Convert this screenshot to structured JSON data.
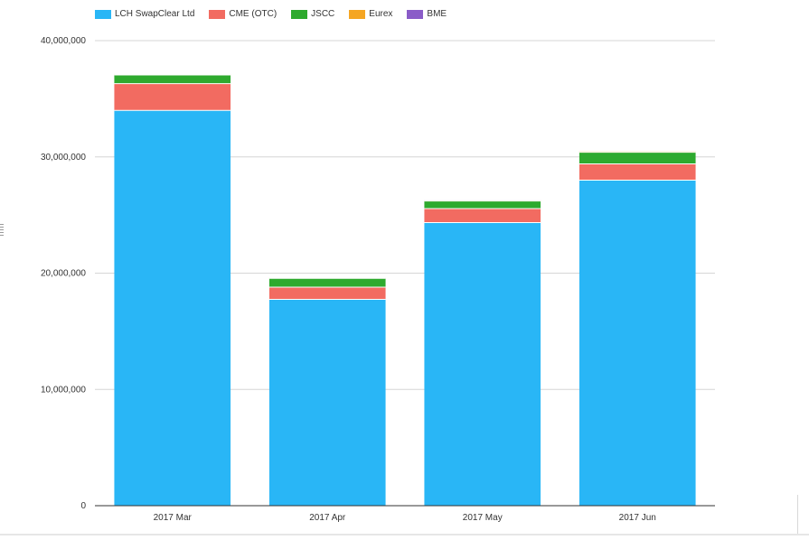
{
  "colors": {
    "LCH SwapClear Ltd": "#29b6f6",
    "CME (OTC)": "#f26b61",
    "JSCC": "#2eaa2e",
    "Eurex": "#f5a623",
    "BME": "#8a5cc8"
  },
  "chart_data": {
    "type": "bar",
    "stacked": true,
    "categories": [
      "2017 Mar",
      "2017 Apr",
      "2017 May",
      "2017 Jun"
    ],
    "series": [
      {
        "name": "LCH SwapClear Ltd",
        "values": [
          34000000,
          17750000,
          24350000,
          28000000
        ]
      },
      {
        "name": "CME (OTC)",
        "values": [
          2300000,
          1050000,
          1200000,
          1400000
        ]
      },
      {
        "name": "JSCC",
        "values": [
          750000,
          750000,
          650000,
          1000000
        ]
      },
      {
        "name": "Eurex",
        "values": [
          80000,
          60000,
          80000,
          100000
        ]
      },
      {
        "name": "BME",
        "values": [
          20000,
          10000,
          20000,
          20000
        ]
      }
    ],
    "y_ticks": [
      "0",
      "10,000,000",
      "20,000,000",
      "30,000,000",
      "40,000,000"
    ],
    "ylim": [
      0,
      40000000
    ],
    "grid": true,
    "legend": "top-left",
    "title": "",
    "xlabel": "",
    "ylabel": ""
  }
}
